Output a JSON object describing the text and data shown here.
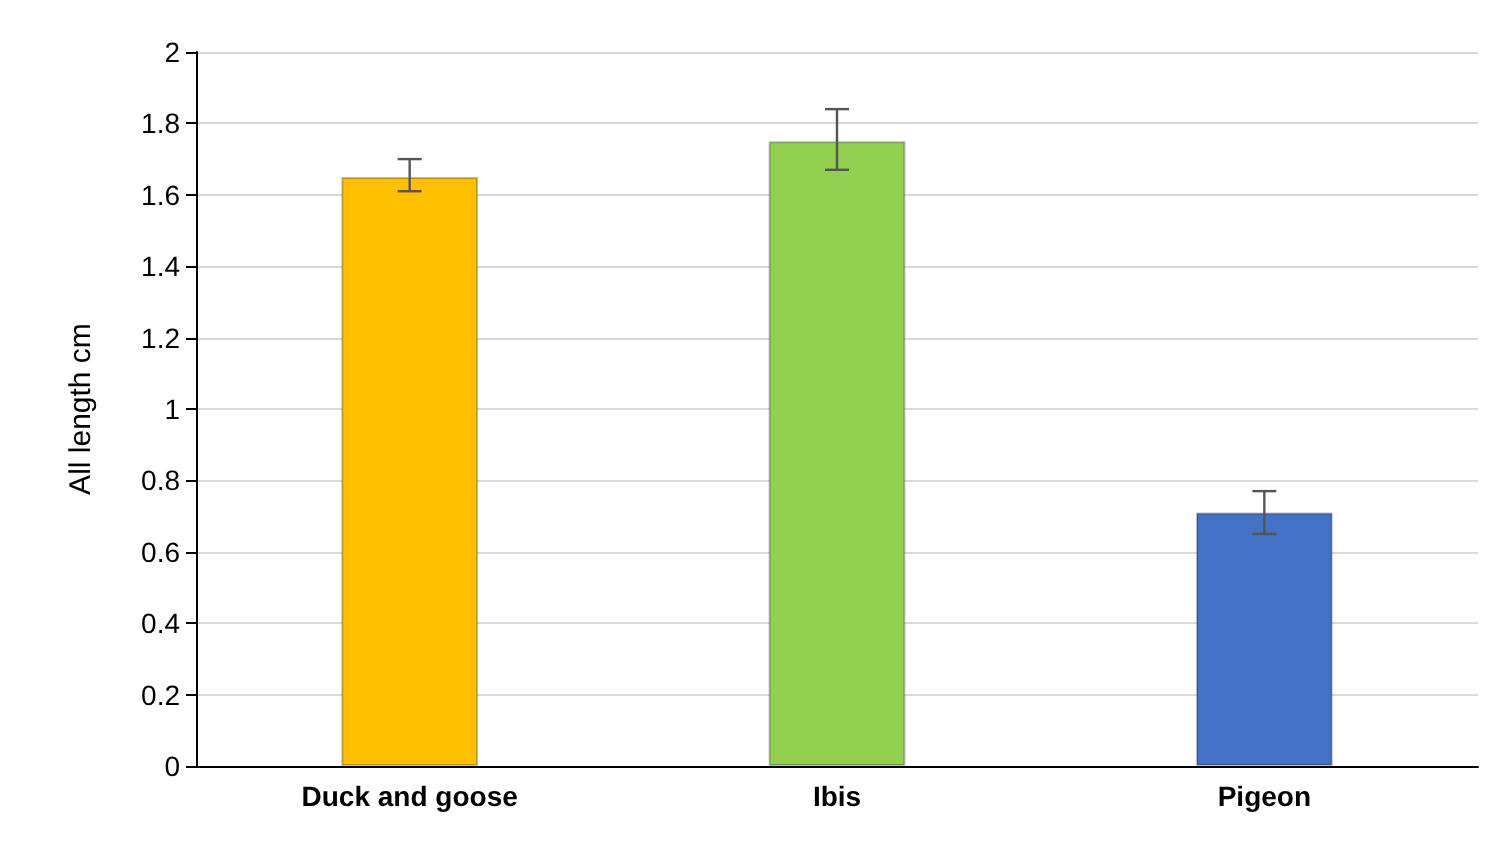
{
  "chart_data": {
    "type": "bar",
    "ylabel": "All length cm",
    "categories": [
      "Duck and goose",
      "Ibis",
      "Pigeon"
    ],
    "values": [
      1.65,
      1.75,
      0.71
    ],
    "colors": [
      "#ffc000",
      "#92d050",
      "#4472c4"
    ],
    "errors": [
      [
        1.61,
        1.7
      ],
      [
        1.67,
        1.84
      ],
      [
        0.65,
        0.77
      ]
    ],
    "ylim": [
      0,
      2
    ],
    "yticks": [
      0,
      0.2,
      0.4,
      0.6,
      0.8,
      1,
      1.2,
      1.4,
      1.6,
      1.8,
      2
    ],
    "grid": "y"
  }
}
